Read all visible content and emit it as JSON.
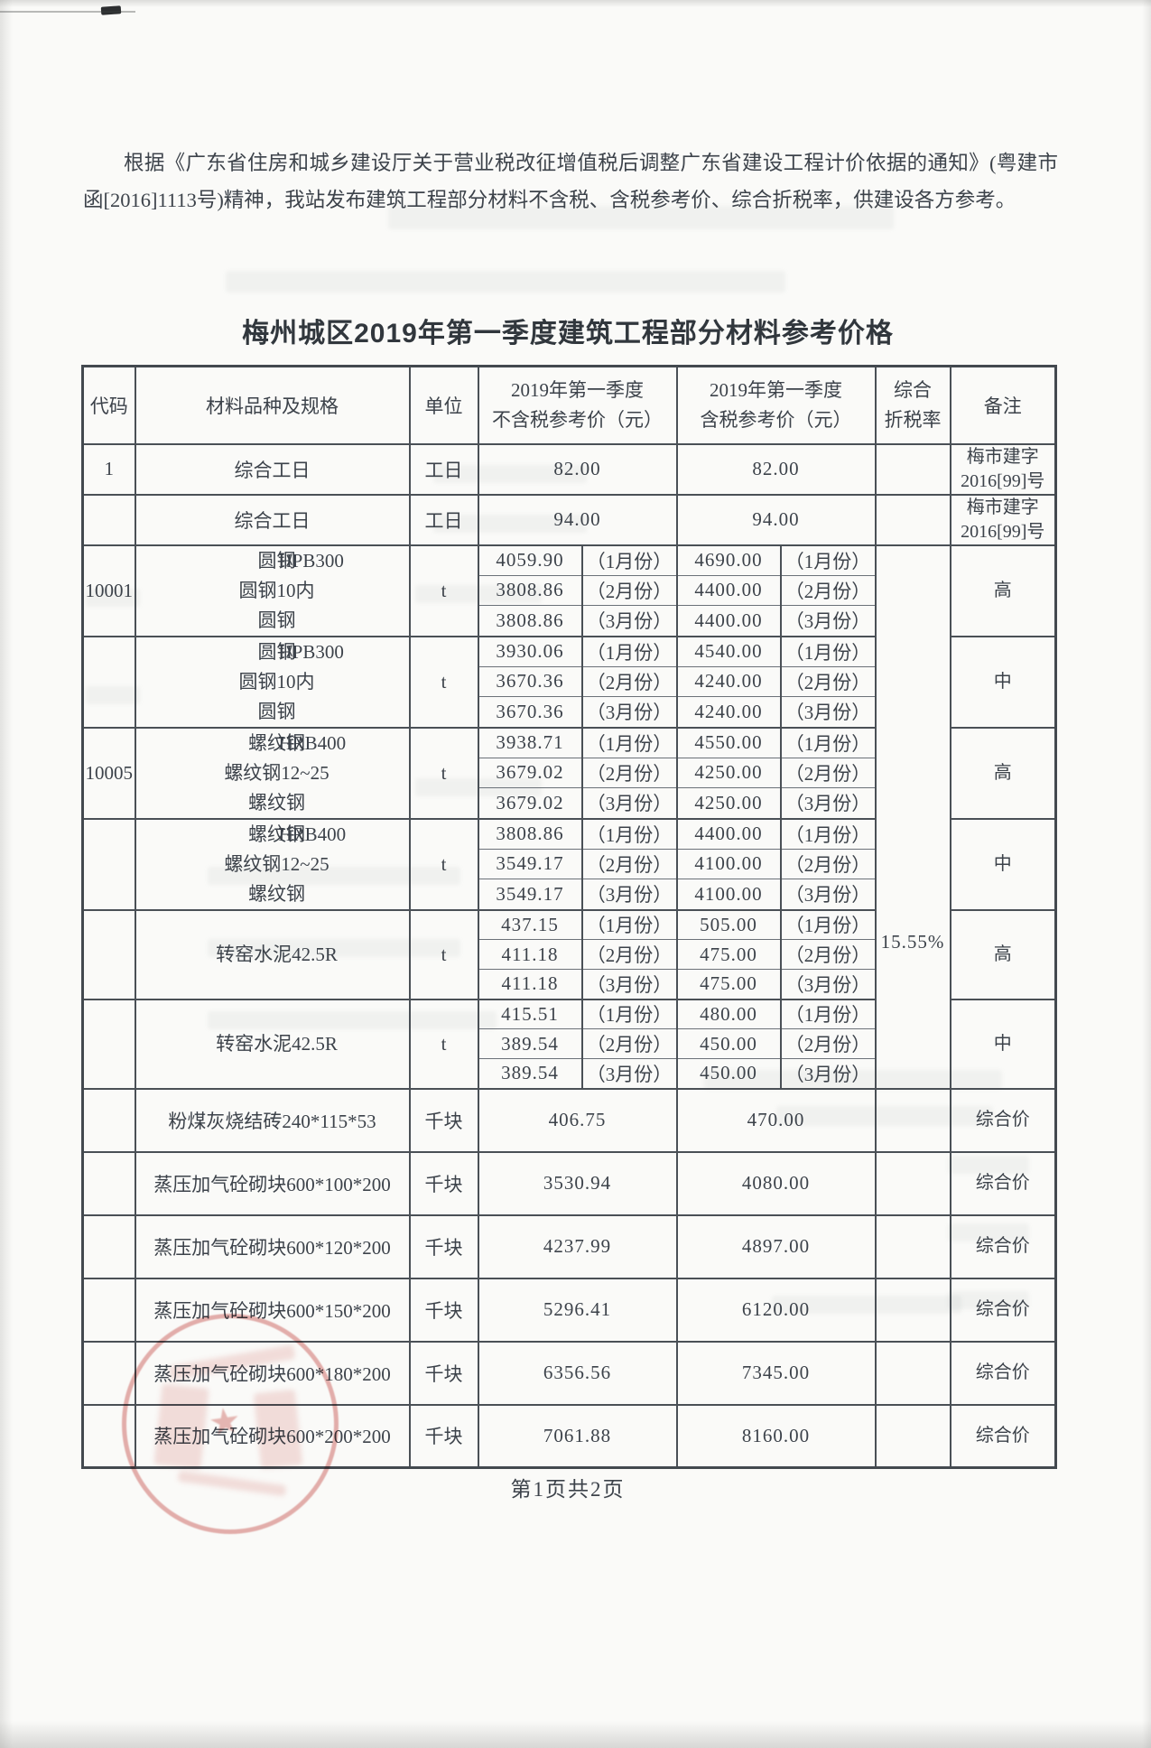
{
  "page": {
    "intro": "根据《广东省住房和城乡建设厅关于营业税改征增值税后调整广东省建设工程计价依据的通知》(粤建市函[2016]1113号)精神，我站发布建筑工程部分材料不含税、含税参考价、综合折税率，供建设各方参考。",
    "title": "梅州城区2019年第一季度建筑工程部分材料参考价格",
    "footer": "第1页共2页"
  },
  "table": {
    "headers": {
      "code": "代码",
      "material": "材料品种及规格",
      "unit": "单位",
      "ex1": "2019年第一季度",
      "ex2": "不含税参考价（元）",
      "in1": "2019年第一季度",
      "in2": "含税参考价（元）",
      "tax1": "综合",
      "tax2": "折税率",
      "remark": "备注"
    },
    "month_labels": [
      "（1月份）",
      "（2月份）",
      "（3月份）"
    ],
    "tax_rate": "15.55%",
    "tax_span": 18,
    "rows": [
      {
        "type": "single",
        "variant": "worker",
        "code": "1",
        "material": "综合工日",
        "unit": "工日",
        "ex": "82.00",
        "inc": "82.00",
        "remark_lines": [
          "梅市建字",
          "2016[99]号"
        ]
      },
      {
        "type": "single",
        "variant": "worker",
        "code": "",
        "material": "综合工日",
        "unit": "工日",
        "ex": "94.00",
        "inc": "94.00",
        "remark_lines": [
          "梅市建字",
          "2016[99]号"
        ]
      },
      {
        "type": "group",
        "code": "10001",
        "material_lines": [
          "圆钢",
          "圆钢10内",
          "圆钢"
        ],
        "spec": "HPB300",
        "unit": "t",
        "ex": [
          "4059.90",
          "3808.86",
          "3808.86"
        ],
        "inc": [
          "4690.00",
          "4400.00",
          "4400.00"
        ],
        "remark_lines": [
          "高"
        ]
      },
      {
        "type": "group",
        "code": "",
        "material_lines": [
          "圆钢",
          "圆钢10内",
          "圆钢"
        ],
        "spec": "HPB300",
        "unit": "t",
        "ex": [
          "3930.06",
          "3670.36",
          "3670.36"
        ],
        "inc": [
          "4540.00",
          "4240.00",
          "4240.00"
        ],
        "remark_lines": [
          "中"
        ]
      },
      {
        "type": "group",
        "code": "10005",
        "material_lines": [
          "螺纹钢",
          "螺纹钢12~25",
          "螺纹钢"
        ],
        "spec": "HRB400",
        "unit": "t",
        "ex": [
          "3938.71",
          "3679.02",
          "3679.02"
        ],
        "inc": [
          "4550.00",
          "4250.00",
          "4250.00"
        ],
        "remark_lines": [
          "高"
        ]
      },
      {
        "type": "group",
        "code": "",
        "material_lines": [
          "螺纹钢",
          "螺纹钢12~25",
          "螺纹钢"
        ],
        "spec": "HRB400",
        "unit": "t",
        "ex": [
          "3808.86",
          "3549.17",
          "3549.17"
        ],
        "inc": [
          "4400.00",
          "4100.00",
          "4100.00"
        ],
        "remark_lines": [
          "中"
        ]
      },
      {
        "type": "group",
        "code": "",
        "material_lines": [
          "转窑水泥42.5R"
        ],
        "spec": "",
        "unit": "t",
        "ex": [
          "437.15",
          "411.18",
          "411.18"
        ],
        "inc": [
          "505.00",
          "475.00",
          "475.00"
        ],
        "remark_lines": [
          "高"
        ]
      },
      {
        "type": "group",
        "code": "",
        "material_lines": [
          "转窑水泥42.5R"
        ],
        "spec": "",
        "unit": "t",
        "ex": [
          "415.51",
          "389.54",
          "389.54"
        ],
        "inc": [
          "480.00",
          "450.00",
          "450.00"
        ],
        "remark_lines": [
          "中"
        ]
      },
      {
        "type": "single",
        "variant": "brick",
        "code": "",
        "material": "粉煤灰烧结砖240*115*53",
        "unit": "千块",
        "ex": "406.75",
        "inc": "470.00",
        "remark_lines": [
          "综合价"
        ]
      },
      {
        "type": "single",
        "variant": "brick",
        "code": "",
        "material": "蒸压加气砼砌块600*100*200",
        "unit": "千块",
        "ex": "3530.94",
        "inc": "4080.00",
        "remark_lines": [
          "综合价"
        ]
      },
      {
        "type": "single",
        "variant": "brick",
        "code": "",
        "material": "蒸压加气砼砌块600*120*200",
        "unit": "千块",
        "ex": "4237.99",
        "inc": "4897.00",
        "remark_lines": [
          "综合价"
        ]
      },
      {
        "type": "single",
        "variant": "brick",
        "code": "",
        "material": "蒸压加气砼砌块600*150*200",
        "unit": "千块",
        "ex": "5296.41",
        "inc": "6120.00",
        "remark_lines": [
          "综合价"
        ]
      },
      {
        "type": "single",
        "variant": "brick",
        "code": "",
        "material": "蒸压加气砼砌块600*180*200",
        "unit": "千块",
        "ex": "6356.56",
        "inc": "7345.00",
        "remark_lines": [
          "综合价"
        ]
      },
      {
        "type": "single",
        "variant": "brick",
        "code": "",
        "material": "蒸压加气砼砌块600*200*200",
        "unit": "千块",
        "ex": "7061.88",
        "inc": "8160.00",
        "remark_lines": [
          "综合价"
        ]
      }
    ]
  }
}
